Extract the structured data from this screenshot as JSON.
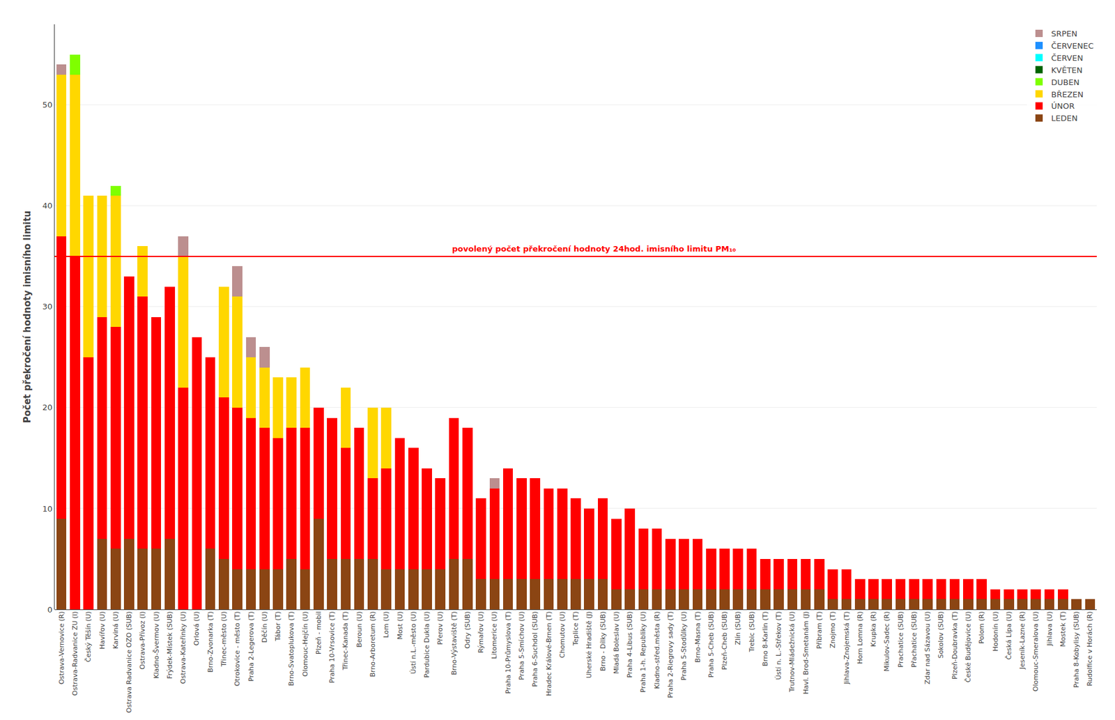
{
  "chart_data": {
    "type": "bar",
    "stacked": true,
    "ylabel": "Počet překročení hodnoty imisního limitu",
    "ylim": [
      0,
      58
    ],
    "yticks": [
      0,
      10,
      20,
      30,
      40,
      50
    ],
    "grid": true,
    "legend": "upper right",
    "reference_lines": [
      {
        "value": 35,
        "label": "povolený počet překročení hodnoty 24hod. imisního limitu PM₁₀",
        "color": "red"
      }
    ],
    "categories": [
      "Ostrava-Vernovice (R)",
      "Ostrava-Radvanice ZU (I)",
      "Český Těšín (U)",
      "Havířov (U)",
      "Karviná (U)",
      "Ostrava Radvanice OZO (SUB)",
      "Ostrava-Přívoz (I)",
      "Kladno-Švermov (U)",
      "Frýdek-Místek (SUB)",
      "Ostrava-Kateřinky (U)",
      "Orlová (U)",
      "Brno-Zvonarka (T)",
      "Třinec-město (U)",
      "Otrokovice - město (T)",
      "Praha 2-Legerova (T)",
      "Děčín (U)",
      "Tábor (T)",
      "Brno-Svatoplukova (T)",
      "Olomouc-Hejčín (U)",
      "Plzeň - mobil",
      "Praha 10-Vrsovice (T)",
      "Třinec-Kanada (T)",
      "Beroun (U)",
      "Brno-Arboretum (R)",
      "Lom (U)",
      "Most (U)",
      "Ústí n.L.-město (U)",
      "Pardubice Dukla (U)",
      "Přerov (U)",
      "Brno-Výstaviště (T)",
      "Odry (SUB)",
      "Rýmařov (U)",
      "Litomerice (U)",
      "Praha 10-Průmyslova (T)",
      "Praha 5-Smíchov (U)",
      "Praha 6-Suchdol (SUB)",
      "Hradec Králové-Brnen (T)",
      "Chomutov (U)",
      "Teplice (T)",
      "Uherské Hradiště (J)",
      "Brno - Dílky (SUB)",
      "Mladá Boleslav (U)",
      "Praha 4-Líbus (SUB)",
      "Praha 1-h. Republiky (U)",
      "Kladno-střed.města (R)",
      "Praha 2-Riegrovy sady (T)",
      "Praha 5-Stodůlky (U)",
      "Brno-Masna (T)",
      "Praha 5-Cheb (SUB)",
      "Plzeň-Cheb (SUB)",
      "Zlín (SUB)",
      "Trebic (SUB)",
      "Brno 8-Karlin (T)",
      "Ústí n. L.-Střekov (T)",
      "Trutnov-Mládežnická (U)",
      "Havl. Brod-Smetanám (J)",
      "Příbram (T)",
      "Znojmo (T)",
      "Jihlava-Znojemská (T)",
      "Horn Lomna (R)",
      "Krupka (R)",
      "Mikulov-Sadec (R)",
      "Prachatice (SUB)",
      "Přachatice (SUB)",
      "Zdar nad Sázavou (U)",
      "Sokolov (SUB)",
      "Plzeň-Doubravka (T)",
      "České Budějovice (U)",
      "Polom (R)",
      "Hodonín (U)",
      "Česká Lípa (U)",
      "Jeseník-Lazne (R)",
      "Olomouc-Smeralova (U)",
      "Jihlava (U)",
      "Mostek (T)",
      "Praha 8-Kobylisy (SUB)",
      "Rudolfice v Horách (R)"
    ],
    "series": [
      {
        "name": "LEDEN",
        "color": "#8B4513",
        "values": [
          9,
          0,
          0,
          7,
          6,
          7,
          6,
          6,
          7,
          0,
          0,
          6,
          5,
          4,
          4,
          4,
          4,
          5,
          4,
          9,
          5,
          5,
          5,
          5,
          4,
          4,
          4,
          4,
          4,
          5,
          5,
          3,
          3,
          3,
          3,
          3,
          3,
          3,
          3,
          3,
          3,
          2,
          2,
          2,
          2,
          2,
          2,
          2,
          2,
          2,
          2,
          2,
          2,
          2,
          2,
          2,
          2,
          1,
          1,
          1,
          1,
          1,
          1,
          1,
          1,
          1,
          1,
          1,
          1,
          1,
          1,
          1,
          1,
          1,
          1,
          1,
          1
        ]
      },
      {
        "name": "ÚNOR",
        "color": "#FF0000",
        "values": [
          28,
          35,
          25,
          22,
          22,
          26,
          25,
          23,
          25,
          22,
          27,
          19,
          16,
          16,
          15,
          14,
          13,
          13,
          14,
          11,
          14,
          11,
          13,
          8,
          10,
          13,
          12,
          10,
          9,
          14,
          13,
          8,
          9,
          11,
          10,
          10,
          9,
          9,
          8,
          7,
          8,
          7,
          8,
          6,
          6,
          5,
          5,
          5,
          4,
          4,
          4,
          4,
          3,
          3,
          3,
          3,
          3,
          3,
          3,
          2,
          2,
          2,
          2,
          2,
          2,
          2,
          2,
          2,
          2,
          1,
          1,
          1,
          1,
          1,
          1,
          0,
          0
        ]
      },
      {
        "name": "BŘEZEN",
        "color": "#FFD700",
        "values": [
          16,
          18,
          16,
          12,
          13,
          0,
          5,
          0,
          0,
          13,
          0,
          0,
          11,
          11,
          6,
          6,
          6,
          5,
          6,
          0,
          0,
          6,
          0,
          7,
          6,
          0,
          0,
          0,
          0,
          0,
          0,
          0,
          0,
          0,
          0,
          0,
          0,
          0,
          0,
          0,
          0,
          0,
          0,
          0,
          0,
          0,
          0,
          0,
          0,
          0,
          0,
          0,
          0,
          0,
          0,
          0,
          0,
          0,
          0,
          0,
          0,
          0,
          0,
          0,
          0,
          0,
          0,
          0,
          0,
          0,
          0,
          0,
          0,
          0,
          0,
          0,
          0
        ]
      },
      {
        "name": "DUBEN",
        "color": "#7FFF00",
        "values": [
          0,
          2,
          0,
          0,
          1,
          0,
          0,
          0,
          0,
          0,
          0,
          0,
          0,
          0,
          0,
          0,
          0,
          0,
          0,
          0,
          0,
          0,
          0,
          0,
          0,
          0,
          0,
          0,
          0,
          0,
          0,
          0,
          0,
          0,
          0,
          0,
          0,
          0,
          0,
          0,
          0,
          0,
          0,
          0,
          0,
          0,
          0,
          0,
          0,
          0,
          0,
          0,
          0,
          0,
          0,
          0,
          0,
          0,
          0,
          0,
          0,
          0,
          0,
          0,
          0,
          0,
          0,
          0,
          0,
          0,
          0,
          0,
          0,
          0,
          0,
          0,
          0
        ]
      },
      {
        "name": "KVĚTEN",
        "color": "#006400",
        "values": [
          0,
          0,
          0,
          0,
          0,
          0,
          0,
          0,
          0,
          0,
          0,
          0,
          0,
          0,
          0,
          0,
          0,
          0,
          0,
          0,
          0,
          0,
          0,
          0,
          0,
          0,
          0,
          0,
          0,
          0,
          0,
          0,
          0,
          0,
          0,
          0,
          0,
          0,
          0,
          0,
          0,
          0,
          0,
          0,
          0,
          0,
          0,
          0,
          0,
          0,
          0,
          0,
          0,
          0,
          0,
          0,
          0,
          0,
          0,
          0,
          0,
          0,
          0,
          0,
          0,
          0,
          0,
          0,
          0,
          0,
          0,
          0,
          0,
          0,
          0,
          0,
          0
        ]
      },
      {
        "name": "ČERVEN",
        "color": "#00FFFF",
        "values": [
          0,
          0,
          0,
          0,
          0,
          0,
          0,
          0,
          0,
          0,
          0,
          0,
          0,
          0,
          0,
          0,
          0,
          0,
          0,
          0,
          0,
          0,
          0,
          0,
          0,
          0,
          0,
          0,
          0,
          0,
          0,
          0,
          0,
          0,
          0,
          0,
          0,
          0,
          0,
          0,
          0,
          0,
          0,
          0,
          0,
          0,
          0,
          0,
          0,
          0,
          0,
          0,
          0,
          0,
          0,
          0,
          0,
          0,
          0,
          0,
          0,
          0,
          0,
          0,
          0,
          0,
          0,
          0,
          0,
          0,
          0,
          0,
          0,
          0,
          0,
          0,
          0
        ]
      },
      {
        "name": "ČERVENEC",
        "color": "#1E90FF",
        "values": [
          0,
          0,
          0,
          0,
          0,
          0,
          0,
          0,
          0,
          0,
          0,
          0,
          0,
          0,
          0,
          0,
          0,
          0,
          0,
          0,
          0,
          0,
          0,
          0,
          0,
          0,
          0,
          0,
          0,
          0,
          0,
          0,
          0,
          0,
          0,
          0,
          0,
          0,
          0,
          0,
          0,
          0,
          0,
          0,
          0,
          0,
          0,
          0,
          0,
          0,
          0,
          0,
          0,
          0,
          0,
          0,
          0,
          0,
          0,
          0,
          0,
          0,
          0,
          0,
          0,
          0,
          0,
          0,
          0,
          0,
          0,
          0,
          0,
          0,
          0,
          0,
          0
        ]
      },
      {
        "name": "SRPEN",
        "color": "#BC8F8F",
        "values": [
          1,
          0,
          0,
          0,
          0,
          0,
          0,
          0,
          0,
          2,
          0,
          0,
          0,
          3,
          2,
          2,
          0,
          0,
          0,
          0,
          0,
          0,
          0,
          0,
          0,
          0,
          0,
          0,
          0,
          0,
          0,
          0,
          1,
          0,
          0,
          0,
          0,
          0,
          0,
          0,
          0,
          0,
          0,
          0,
          0,
          0,
          0,
          0,
          0,
          0,
          0,
          0,
          0,
          0,
          0,
          0,
          0,
          0,
          0,
          0,
          0,
          0,
          0,
          0,
          0,
          0,
          0,
          0,
          0,
          0,
          0,
          0,
          0,
          0,
          0,
          0,
          0
        ]
      }
    ]
  }
}
